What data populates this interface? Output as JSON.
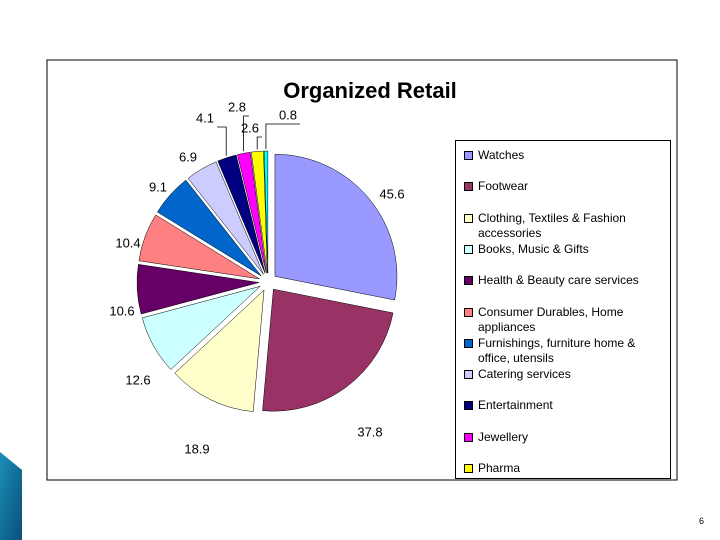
{
  "chart_data": {
    "type": "pie",
    "title": "Organized Retail",
    "categories": [
      "Watches",
      "Footwear",
      "Clothing, Textiles & Fashion accessories",
      "Books, Music  & Gifts",
      "Health & Beauty care services",
      "Consumer Durables, Home appliances",
      "Furnishings, furniture home & office, utensils",
      "Catering services",
      "Entertainment",
      "Jewellery",
      "Pharma",
      null
    ],
    "values": [
      45.6,
      37.8,
      18.9,
      12.6,
      10.6,
      10.4,
      9.1,
      6.9,
      4.1,
      2.8,
      2.6,
      0.8
    ],
    "colors": [
      "#9999ff",
      "#993366",
      "#ffffcc",
      "#ccffff",
      "#660066",
      "#ff8080",
      "#0066cc",
      "#ccccff",
      "#000080",
      "#ff00ff",
      "#ffff00",
      "#00ffff"
    ],
    "legend": "right"
  },
  "slide_number": "6"
}
